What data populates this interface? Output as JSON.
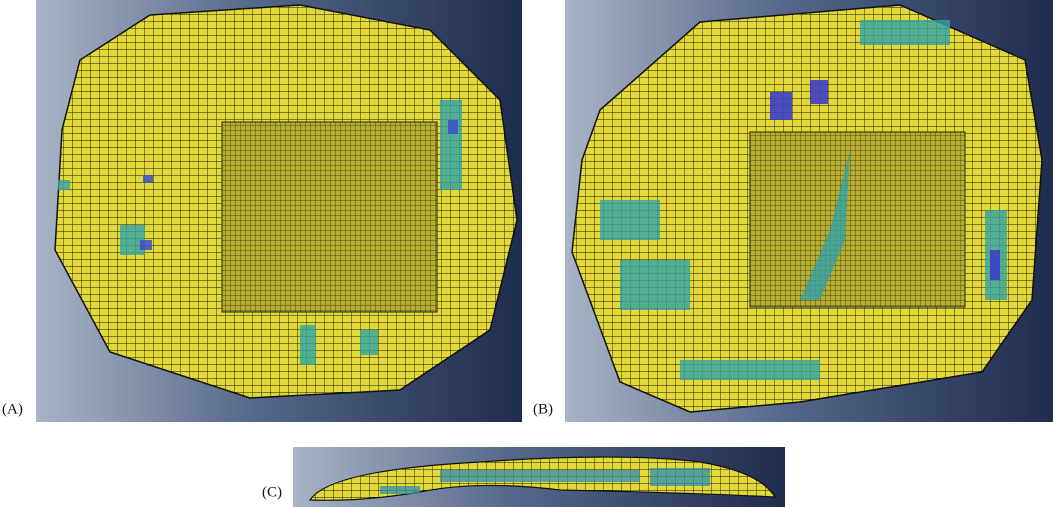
{
  "panels": [
    {
      "label": "(A)"
    },
    {
      "label": "(B)"
    },
    {
      "label": "(C)"
    }
  ]
}
